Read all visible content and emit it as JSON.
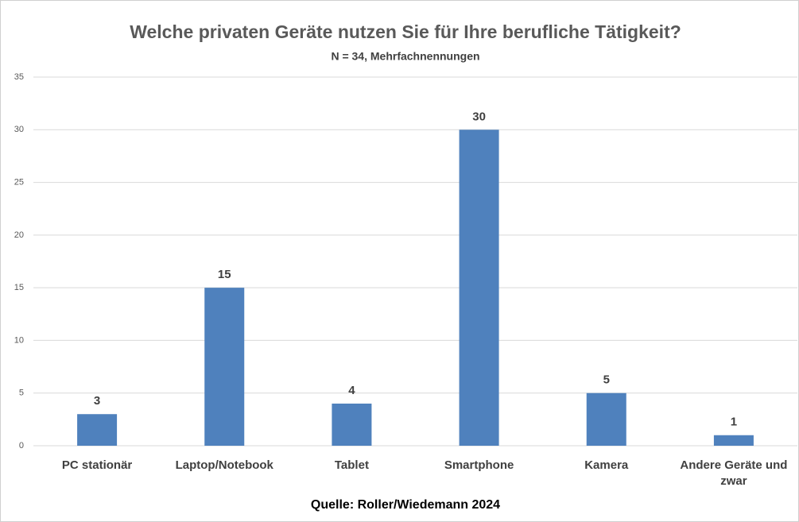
{
  "chart_data": {
    "type": "bar",
    "title": "Welche privaten Geräte nutzen Sie für Ihre berufliche Tätigkeit?",
    "subtitle": "N = 34, Mehrfachnennungen",
    "source": "Quelle: Roller/Wiedemann 2024",
    "categories": [
      "PC stationär",
      "Laptop/Notebook",
      "Tablet",
      "Smartphone",
      "Kamera",
      "Andere Geräte und zwar"
    ],
    "values": [
      3,
      15,
      4,
      30,
      5,
      1
    ],
    "color": "#4f81bd",
    "ylim": [
      0,
      35
    ],
    "yticks": [
      0,
      5,
      10,
      15,
      20,
      25,
      30,
      35
    ],
    "grid": true
  }
}
